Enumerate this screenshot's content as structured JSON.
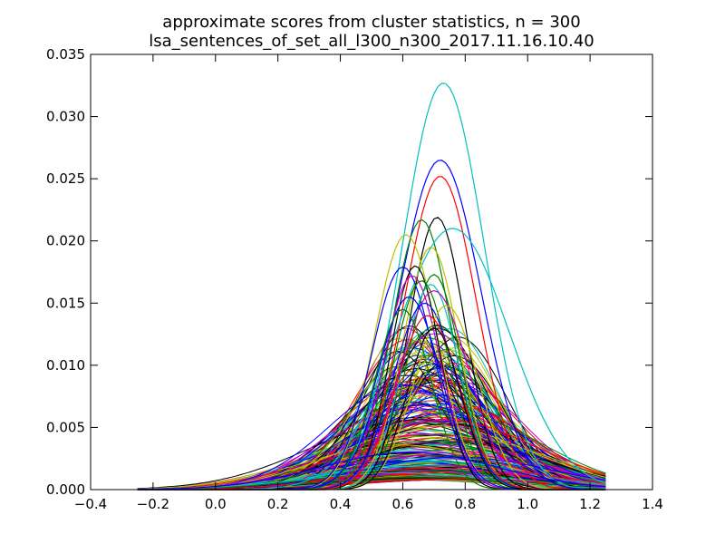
{
  "chart_data": {
    "type": "line",
    "title": "approximate scores from cluster statistics, n = 300",
    "subtitle": "lsa_sentences_of_set_all_l300_n300_2017.11.16.10.40",
    "xlabel": "",
    "ylabel": "",
    "xlim": [
      -0.4,
      1.4
    ],
    "ylim": [
      0.0,
      0.035
    ],
    "xticks": [
      "−0.4",
      "−0.2",
      "0.0",
      "0.2",
      "0.4",
      "0.6",
      "0.8",
      "1.0",
      "1.2",
      "1.4"
    ],
    "yticks": [
      "0.000",
      "0.005",
      "0.010",
      "0.015",
      "0.020",
      "0.025",
      "0.030",
      "0.035"
    ],
    "grid": false,
    "legend": "none",
    "x_range": [
      -0.25,
      1.25
    ],
    "series_count": 300,
    "curve_shape": "normal density curves plotted over x from -0.25 to 1.25",
    "series_colors": [
      "#0000ff",
      "#008000",
      "#ff0000",
      "#00bfbf",
      "#bf00bf",
      "#bfbf00",
      "#000000"
    ],
    "series": [
      {
        "color": "#00bfbf",
        "peak_x": 0.73,
        "peak_y": 0.0327,
        "sigma": 0.13
      },
      {
        "color": "#0000ff",
        "peak_x": 0.72,
        "peak_y": 0.0265,
        "sigma": 0.13
      },
      {
        "color": "#ff0000",
        "peak_x": 0.72,
        "peak_y": 0.0252,
        "sigma": 0.115
      },
      {
        "color": "#000000",
        "peak_x": 0.71,
        "peak_y": 0.0219,
        "sigma": 0.09
      },
      {
        "color": "#008000",
        "peak_x": 0.66,
        "peak_y": 0.0217,
        "sigma": 0.095
      },
      {
        "color": "#00bfbf",
        "peak_x": 0.76,
        "peak_y": 0.021,
        "sigma": 0.18
      },
      {
        "color": "#bfbf00",
        "peak_x": 0.61,
        "peak_y": 0.0205,
        "sigma": 0.1
      },
      {
        "color": "#bfbf00",
        "peak_x": 0.69,
        "peak_y": 0.0195,
        "sigma": 0.09
      },
      {
        "color": "#0000ff",
        "peak_x": 0.6,
        "peak_y": 0.0179,
        "sigma": 0.1
      },
      {
        "color": "#000000",
        "peak_x": 0.64,
        "peak_y": 0.018,
        "sigma": 0.08
      },
      {
        "color": "#bf00bf",
        "peak_x": 0.63,
        "peak_y": 0.0172,
        "sigma": 0.09
      },
      {
        "color": "#008000",
        "peak_x": 0.7,
        "peak_y": 0.0173,
        "sigma": 0.085
      },
      {
        "color": "#008000",
        "peak_x": 0.66,
        "peak_y": 0.0168,
        "sigma": 0.09
      },
      {
        "color": "#00bfbf",
        "peak_x": 0.69,
        "peak_y": 0.0165,
        "sigma": 0.09
      },
      {
        "color": "#bf00bf",
        "peak_x": 0.7,
        "peak_y": 0.016,
        "sigma": 0.11
      },
      {
        "color": "#0000ff",
        "peak_x": 0.62,
        "peak_y": 0.0155,
        "sigma": 0.1
      },
      {
        "color": "#0000ff",
        "peak_x": 0.67,
        "peak_y": 0.015,
        "sigma": 0.1
      },
      {
        "color": "#bfbf00",
        "peak_x": 0.74,
        "peak_y": 0.0148,
        "sigma": 0.1
      },
      {
        "color": "#008000",
        "peak_x": 0.6,
        "peak_y": 0.0145,
        "sigma": 0.09
      },
      {
        "color": "#ff0000",
        "peak_x": 0.68,
        "peak_y": 0.014,
        "sigma": 0.1
      },
      {
        "color": "#000000",
        "peak_x": 0.7,
        "peak_y": 0.013,
        "sigma": 0.085
      },
      {
        "color": "#0000ff",
        "peak_x": 0.62,
        "peak_y": 0.003,
        "sigma": 0.28
      }
    ]
  }
}
